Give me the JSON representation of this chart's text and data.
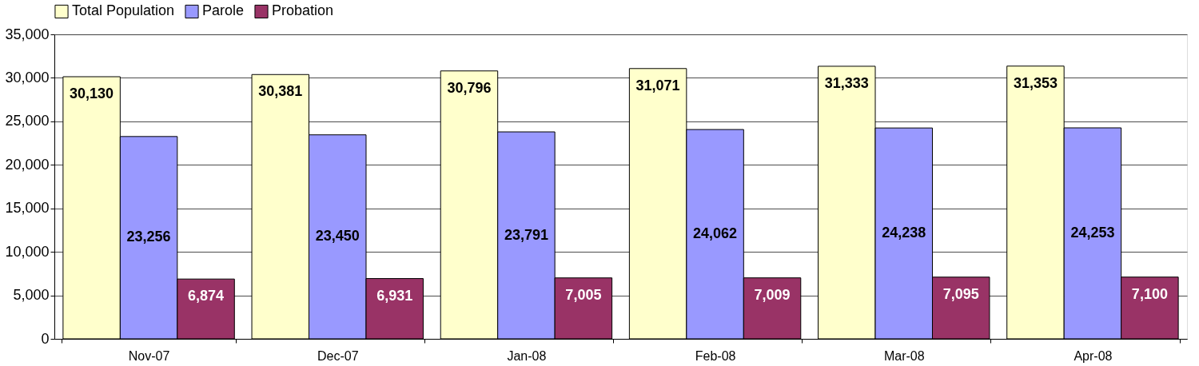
{
  "chart_data": {
    "type": "bar",
    "categories": [
      "Nov-07",
      "Dec-07",
      "Jan-08",
      "Feb-08",
      "Mar-08",
      "Apr-08"
    ],
    "series": [
      {
        "name": "Total Population",
        "color": "#ffffcc",
        "values": [
          30130,
          30381,
          30796,
          31071,
          31333,
          31353
        ],
        "value_labels": [
          "30,130",
          "30,381",
          "30,796",
          "31,071",
          "31,333",
          "31,353"
        ]
      },
      {
        "name": "Parole",
        "color": "#9999ff",
        "values": [
          23256,
          23450,
          23791,
          24062,
          24238,
          24253
        ],
        "value_labels": [
          "23,256",
          "23,450",
          "23,791",
          "24,062",
          "24,238",
          "24,253"
        ]
      },
      {
        "name": "Probation",
        "color": "#993366",
        "values": [
          6874,
          6931,
          7005,
          7009,
          7095,
          7100
        ],
        "value_labels": [
          "6,874",
          "6,931",
          "7,005",
          "7,009",
          "7,095",
          "7,100"
        ]
      }
    ],
    "ylim": [
      0,
      35000
    ],
    "yticks": [
      0,
      {
        "value": 5000,
        "label": "5,000"
      },
      {
        "value": 10000,
        "label": "10,000"
      },
      {
        "value": 15000,
        "label": "15,000"
      },
      {
        "value": 20000,
        "label": "20,000"
      },
      {
        "value": 25000,
        "label": "25,000"
      },
      {
        "value": 30000,
        "label": "30,000"
      },
      {
        "value": 35000,
        "label": "35,000"
      }
    ],
    "grid": "y",
    "legend": "top"
  }
}
